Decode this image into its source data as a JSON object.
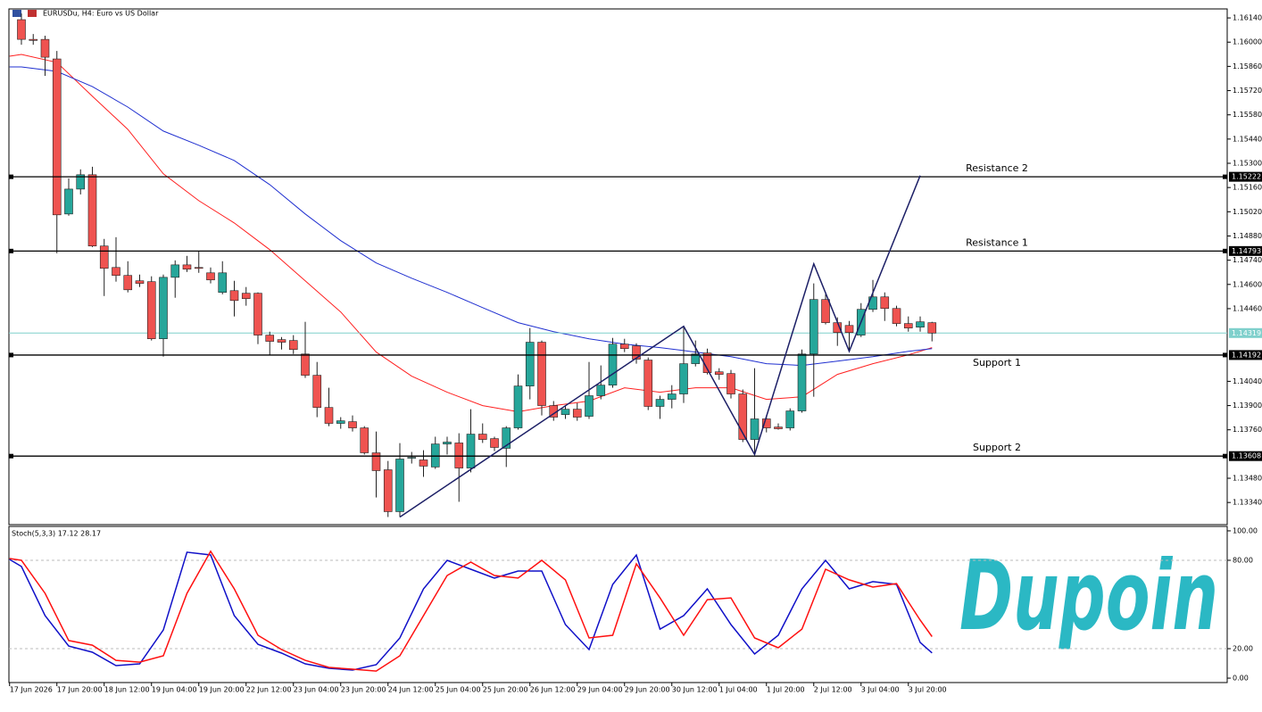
{
  "chart_data": [
    {
      "type": "candlestick",
      "title": "EURUSDu, H4:  Euro vs US Dollar",
      "x": [
        0,
        1,
        2,
        3,
        4,
        5,
        6,
        7,
        8,
        9,
        10,
        11,
        12,
        13,
        14,
        15,
        16,
        17,
        18,
        19,
        20,
        21,
        22,
        23,
        24,
        25,
        26,
        27,
        28,
        29,
        30,
        31,
        32,
        33,
        34,
        35,
        36,
        37,
        38,
        39,
        40,
        41,
        42,
        43,
        44,
        45,
        46,
        47,
        48,
        49,
        50,
        51,
        52,
        53,
        54,
        55,
        56,
        57,
        58,
        59,
        60,
        61,
        62,
        63,
        64,
        65,
        66,
        67,
        68,
        69,
        70,
        71,
        72,
        73,
        74,
        75,
        76,
        77
      ],
      "open": [
        1.1613,
        1.16016,
        1.16016,
        1.15903,
        1.15007,
        1.15151,
        1.15234,
        1.14822,
        1.14698,
        1.14652,
        1.14621,
        1.14616,
        1.14286,
        1.14641,
        1.14713,
        1.14698,
        1.14667,
        1.14554,
        1.14564,
        1.14549,
        1.14549,
        1.14307,
        1.14281,
        1.14276,
        1.14198,
        1.14075,
        1.13889,
        1.13797,
        1.13807,
        1.13771,
        1.13627,
        1.13529,
        1.13287,
        1.13596,
        1.13586,
        1.13545,
        1.13678,
        1.13684,
        1.13539,
        1.13735,
        1.13709,
        1.13653,
        1.13771,
        1.14013,
        1.14266,
        1.139,
        1.13848,
        1.13879,
        1.13838,
        1.13957,
        1.14018,
        1.14255,
        1.14245,
        1.14163,
        1.13895,
        1.13936,
        1.13967,
        1.14142,
        1.14204,
        1.14095,
        1.14085,
        1.13967,
        1.13704,
        1.13823,
        1.13776,
        1.13771,
        1.13869,
        1.14198,
        1.14513,
        1.14379,
        1.14363,
        1.14307,
        1.14456,
        1.14528,
        1.14461,
        1.14374,
        1.14353,
        1.14379
      ],
      "high": [
        1.16166,
        1.16047,
        1.16037,
        1.15949,
        1.15213,
        1.15265,
        1.1528,
        1.14863,
        1.14873,
        1.14734,
        1.14657,
        1.14647,
        1.14657,
        1.14739,
        1.14765,
        1.14791,
        1.14698,
        1.14734,
        1.14621,
        1.14585,
        1.14554,
        1.14327,
        1.14296,
        1.14307,
        1.14384,
        1.14152,
        1.14003,
        1.13833,
        1.13843,
        1.13781,
        1.1375,
        1.1358,
        1.13683,
        1.13632,
        1.13642,
        1.1372,
        1.1372,
        1.1374,
        1.13879,
        1.13797,
        1.1372,
        1.13781,
        1.1408,
        1.14348,
        1.14276,
        1.13926,
        1.139,
        1.13915,
        1.14152,
        1.14132,
        1.14291,
        1.14286,
        1.1426,
        1.14178,
        1.13957,
        1.14018,
        1.14358,
        1.14276,
        1.14229,
        1.14116,
        1.14106,
        1.13993,
        1.14116,
        1.13843,
        1.13797,
        1.13884,
        1.14224,
        1.14606,
        1.14544,
        1.1441,
        1.14389,
        1.14492,
        1.14626,
        1.14554,
        1.14477,
        1.14415,
        1.14415,
        1.14384
      ],
      "low": [
        1.15985,
        1.15985,
        1.15805,
        1.1478,
        1.14997,
        1.1512,
        1.14816,
        1.14533,
        1.14616,
        1.14554,
        1.14585,
        1.14276,
        1.14183,
        1.14523,
        1.14672,
        1.14667,
        1.14606,
        1.14543,
        1.14415,
        1.14477,
        1.14255,
        1.14193,
        1.14224,
        1.14198,
        1.1406,
        1.13833,
        1.13781,
        1.13766,
        1.1375,
        1.13617,
        1.13369,
        1.13256,
        1.13256,
        1.13565,
        1.13488,
        1.13534,
        1.13617,
        1.13344,
        1.13514,
        1.13684,
        1.13637,
        1.13545,
        1.13761,
        1.13936,
        1.13843,
        1.13812,
        1.13823,
        1.13812,
        1.13823,
        1.13936,
        1.14003,
        1.14209,
        1.14142,
        1.13874,
        1.13823,
        1.13884,
        1.13915,
        1.14126,
        1.1408,
        1.14049,
        1.13941,
        1.13689,
        1.13627,
        1.13745,
        1.13761,
        1.13756,
        1.13859,
        1.13951,
        1.14369,
        1.14245,
        1.14214,
        1.14296,
        1.14441,
        1.14389,
        1.14358,
        1.14327,
        1.14327,
        1.14271
      ],
      "close": [
        1.16016,
        1.1601,
        1.15913,
        1.15002,
        1.15151,
        1.15234,
        1.14822,
        1.14693,
        1.14652,
        1.14569,
        1.14606,
        1.14286,
        1.14641,
        1.14713,
        1.14688,
        1.14693,
        1.14626,
        1.14667,
        1.14507,
        1.14518,
        1.14307,
        1.14271,
        1.14266,
        1.14224,
        1.14075,
        1.13889,
        1.13797,
        1.13812,
        1.13771,
        1.13627,
        1.13524,
        1.13287,
        1.13591,
        1.13601,
        1.1355,
        1.13678,
        1.13689,
        1.13539,
        1.13735,
        1.13704,
        1.13658,
        1.13771,
        1.14013,
        1.14266,
        1.139,
        1.13833,
        1.13879,
        1.13833,
        1.13957,
        1.14018,
        1.14255,
        1.14229,
        1.14168,
        1.13895,
        1.13936,
        1.13967,
        1.14142,
        1.14198,
        1.1409,
        1.1408,
        1.13967,
        1.13704,
        1.13823,
        1.13771,
        1.13766,
        1.13869,
        1.14198,
        1.14513,
        1.14379,
        1.14322,
        1.14322,
        1.14456,
        1.14528,
        1.14461,
        1.14374,
        1.14348,
        1.14384,
        1.14319
      ],
      "up_color": "#26a69a",
      "down_color": "#ef5350",
      "moving_averages": [
        {
          "color": "#ff2020",
          "x": [
            -1,
            0,
            3,
            6,
            9,
            12,
            15,
            18,
            21,
            24,
            27,
            30,
            33,
            36,
            39,
            42,
            45,
            48,
            51,
            54,
            57,
            60,
            63,
            66,
            69,
            72,
            75,
            77
          ],
          "values": [
            1.15919,
            1.15929,
            1.15883,
            1.15687,
            1.15496,
            1.15239,
            1.15084,
            1.14955,
            1.14801,
            1.14621,
            1.14441,
            1.14209,
            1.1407,
            1.13977,
            1.139,
            1.13864,
            1.139,
            1.13926,
            1.14003,
            1.13977,
            1.14003,
            1.14003,
            1.13936,
            1.13951,
            1.1408,
            1.14142,
            1.14193,
            1.14235
          ]
        },
        {
          "color": "#2030d0",
          "x": [
            -1,
            0,
            3,
            6,
            9,
            12,
            15,
            18,
            21,
            24,
            27,
            30,
            33,
            36,
            39,
            42,
            45,
            48,
            51,
            54,
            57,
            60,
            63,
            66,
            69,
            72,
            75,
            77
          ],
          "values": [
            1.15857,
            1.15857,
            1.15831,
            1.15743,
            1.15625,
            1.15486,
            1.15404,
            1.15316,
            1.15177,
            1.15007,
            1.14853,
            1.14724,
            1.14636,
            1.14554,
            1.14466,
            1.14379,
            1.14327,
            1.14286,
            1.14255,
            1.14235,
            1.14209,
            1.14183,
            1.14142,
            1.14132,
            1.14157,
            1.14183,
            1.14214,
            1.14229
          ]
        }
      ],
      "pattern": {
        "color": "#1c1f66",
        "x": [
          32,
          56,
          62,
          67,
          70,
          76
        ],
        "values": [
          1.13256,
          1.14358,
          1.13617,
          1.14719,
          1.14214,
          1.15229
        ]
      },
      "levels": [
        {
          "name": "Resistance 2",
          "value": 1.15222
        },
        {
          "name": "Resistance 1",
          "value": 1.14793
        },
        {
          "name": "Support 1",
          "value": 1.14192
        },
        {
          "name": "Support 2",
          "value": 1.13608
        }
      ],
      "current_price": {
        "value": 1.14319,
        "color": "#7fd0cc"
      },
      "xlim": [
        -1.81,
        101.96
      ],
      "ylim": [
        1.13212,
        1.16192
      ],
      "yticks": [
        {
          "value": 1.1614,
          "label": "1.16140"
        },
        {
          "value": 1.16,
          "label": "1.16000"
        },
        {
          "value": 1.1586,
          "label": "1.15860"
        },
        {
          "value": 1.1572,
          "label": "1.15720"
        },
        {
          "value": 1.1558,
          "label": "1.15580"
        },
        {
          "value": 1.1544,
          "label": "1.15440"
        },
        {
          "value": 1.153,
          "label": "1.15300"
        },
        {
          "value": 1.1516,
          "label": "1.15160"
        },
        {
          "value": 1.1502,
          "label": "1.15020"
        },
        {
          "value": 1.1488,
          "label": "1.14880"
        },
        {
          "value": 1.1474,
          "label": "1.14740"
        },
        {
          "value": 1.146,
          "label": "1.14600"
        },
        {
          "value": 1.1446,
          "label": "1.14460"
        },
        {
          "value": 1.1404,
          "label": "1.14040"
        },
        {
          "value": 1.139,
          "label": "1.13900"
        },
        {
          "value": 1.1376,
          "label": "1.13760"
        },
        {
          "value": 1.1348,
          "label": "1.13480"
        },
        {
          "value": 1.1334,
          "label": "1.13340"
        }
      ],
      "xticks": [
        {
          "value": -1,
          "label": "17 Jun 2026"
        },
        {
          "value": 3,
          "label": "17 Jun 20:00"
        },
        {
          "value": 7,
          "label": "18 Jun 12:00"
        },
        {
          "value": 11,
          "label": "19 Jun 04:00"
        },
        {
          "value": 15,
          "label": "19 Jun 20:00"
        },
        {
          "value": 19,
          "label": "22 Jun 12:00"
        },
        {
          "value": 23,
          "label": "23 Jun 04:00"
        },
        {
          "value": 27,
          "label": "23 Jun 20:00"
        },
        {
          "value": 31,
          "label": "24 Jun 12:00"
        },
        {
          "value": 35,
          "label": "25 Jun 04:00"
        },
        {
          "value": 39,
          "label": "25 Jun 20:00"
        },
        {
          "value": 43,
          "label": "26 Jun 12:00"
        },
        {
          "value": 47,
          "label": "29 Jun 04:00"
        },
        {
          "value": 51,
          "label": "29 Jun 20:00"
        },
        {
          "value": 55,
          "label": "30 Jun 12:00"
        },
        {
          "value": 59,
          "label": "1 Jul 04:00"
        },
        {
          "value": 63,
          "label": "1 Jul 20:00"
        },
        {
          "value": 67,
          "label": "2 Jul 12:00"
        },
        {
          "value": 71,
          "label": "3 Jul 04:00"
        },
        {
          "value": 75,
          "label": "3 Jul 20:00"
        }
      ]
    },
    {
      "type": "line",
      "title": "Stoch(5,3,3) 17.12 28.17",
      "x": [
        -1,
        0,
        2,
        4,
        6,
        8,
        10,
        12,
        14,
        16,
        18,
        20,
        22,
        24,
        26,
        28,
        30,
        32,
        34,
        36,
        38,
        40,
        42,
        44,
        46,
        48,
        50,
        52,
        54,
        56,
        58,
        60,
        62,
        64,
        66,
        68,
        70,
        72,
        74,
        76,
        77
      ],
      "series": [
        {
          "color": "#1010c8",
          "values": [
            80.6,
            75.8,
            42.4,
            21.8,
            17.6,
            8.5,
            9.7,
            32.7,
            85.5,
            83.6,
            42.4,
            23.0,
            17.0,
            9.7,
            6.7,
            5.5,
            9.1,
            27.3,
            60.6,
            80.0,
            73.9,
            67.9,
            72.7,
            72.7,
            36.4,
            19.4,
            63.6,
            83.6,
            33.3,
            42.4,
            60.6,
            36.4,
            16.4,
            29.1,
            60.6,
            80.0,
            60.6,
            65.5,
            63.6,
            24.2,
            17.12
          ]
        },
        {
          "color": "#ff1010",
          "values": [
            81.2,
            80.0,
            57.6,
            25.5,
            22.4,
            12.1,
            10.9,
            15.2,
            57.6,
            86.1,
            60.6,
            29.1,
            19.4,
            12.1,
            7.3,
            6.1,
            4.8,
            15.2,
            42.4,
            69.7,
            78.8,
            69.7,
            67.9,
            80.0,
            66.7,
            27.3,
            29.1,
            77.6,
            54.5,
            29.1,
            53.3,
            54.5,
            27.3,
            20.6,
            33.3,
            73.9,
            66.7,
            61.8,
            64.2,
            39.4,
            28.17
          ]
        }
      ],
      "xlim": [
        -1.81,
        101.96
      ],
      "ylim": [
        -3,
        103
      ],
      "yticks": [
        {
          "value": 100,
          "label": "100.00"
        },
        {
          "value": 80,
          "label": "80.00"
        },
        {
          "value": 20,
          "label": "20.00"
        },
        {
          "value": 0,
          "label": "0.00"
        }
      ]
    }
  ],
  "logo": "Dupoin"
}
